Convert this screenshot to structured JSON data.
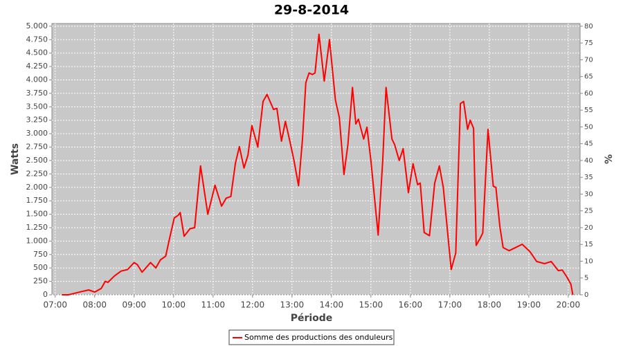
{
  "chart_data": {
    "type": "line",
    "title": "29-8-2014",
    "x_label": "Période",
    "y_label": "Watts",
    "y2_label": "%",
    "x": [
      "07:10",
      "07:20",
      "07:30",
      "07:40",
      "07:51",
      "08:00",
      "08:10",
      "08:16",
      "08:20",
      "08:30",
      "08:40",
      "08:50",
      "09:00",
      "09:05",
      "09:12",
      "09:25",
      "09:33",
      "09:40",
      "09:48",
      "09:53",
      "10:01",
      "10:07",
      "10:10",
      "10:16",
      "10:25",
      "10:32",
      "10:41",
      "10:52",
      "11:03",
      "11:13",
      "11:20",
      "11:27",
      "11:34",
      "11:40",
      "11:47",
      "11:53",
      "11:59",
      "12:08",
      "12:16",
      "12:22",
      "12:32",
      "12:37",
      "12:44",
      "12:50",
      "12:58",
      "13:03",
      "13:10",
      "13:16",
      "13:21",
      "13:26",
      "13:31",
      "13:35",
      "13:41",
      "13:49",
      "13:57",
      "14:06",
      "14:12",
      "14:19",
      "14:25",
      "14:32",
      "14:37",
      "14:41",
      "14:49",
      "14:54",
      "15:00",
      "15:11",
      "15:18",
      "15:23",
      "15:32",
      "15:36",
      "15:43",
      "15:49",
      "15:57",
      "16:04",
      "16:11",
      "16:15",
      "16:21",
      "16:29",
      "16:37",
      "16:44",
      "16:50",
      "17:02",
      "17:09",
      "17:16",
      "17:21",
      "17:27",
      "17:31",
      "17:36",
      "17:40",
      "17:46",
      "17:50",
      "17:58",
      "18:06",
      "18:10",
      "18:16",
      "18:21",
      "18:30",
      "18:40",
      "18:50",
      "19:02",
      "19:12",
      "19:24",
      "19:34",
      "19:45",
      "19:51",
      "19:57",
      "20:04",
      "20:07"
    ],
    "series": [
      {
        "name": "Somme des productions des onduleurs",
        "color": "#ff0000",
        "values": [
          0,
          0,
          30,
          60,
          90,
          50,
          120,
          250,
          230,
          350,
          440,
          470,
          600,
          560,
          420,
          600,
          500,
          650,
          720,
          1000,
          1430,
          1480,
          1530,
          1090,
          1230,
          1250,
          2400,
          1500,
          2040,
          1650,
          1800,
          1830,
          2450,
          2760,
          2360,
          2600,
          3150,
          2750,
          3600,
          3730,
          3450,
          3470,
          2860,
          3230,
          2790,
          2500,
          2030,
          2900,
          3950,
          4130,
          4100,
          4130,
          4850,
          3980,
          4750,
          3630,
          3300,
          2240,
          2800,
          3860,
          3180,
          3270,
          2900,
          3120,
          2500,
          1110,
          2500,
          3860,
          2900,
          2800,
          2500,
          2720,
          1900,
          2440,
          2050,
          2080,
          1160,
          1100,
          2080,
          2400,
          2000,
          470,
          780,
          3560,
          3600,
          3080,
          3250,
          3100,
          920,
          1050,
          1150,
          3080,
          2020,
          2000,
          1270,
          880,
          820,
          880,
          940,
          800,
          620,
          580,
          620,
          450,
          460,
          350,
          200,
          0
        ]
      }
    ],
    "xlim": [
      "06:55",
      "20:18"
    ],
    "xticks": [
      "07:00",
      "08:00",
      "09:00",
      "10:00",
      "11:00",
      "12:00",
      "13:00",
      "14:00",
      "15:00",
      "16:00",
      "17:00",
      "18:00",
      "19:00",
      "20:00"
    ],
    "ylim": [
      0,
      5050
    ],
    "yticks": [
      0,
      250,
      500,
      750,
      {
        "value": 1000,
        "label": "1.000"
      },
      {
        "value": 1250,
        "label": "1.250"
      },
      {
        "value": 1500,
        "label": "1.500"
      },
      {
        "value": 1750,
        "label": "1.750"
      },
      {
        "value": 2000,
        "label": "2.000"
      },
      {
        "value": 2250,
        "label": "2.250"
      },
      {
        "value": 2500,
        "label": "2.500"
      },
      {
        "value": 2750,
        "label": "2.750"
      },
      {
        "value": 3000,
        "label": "3.000"
      },
      {
        "value": 3250,
        "label": "3.250"
      },
      {
        "value": 3500,
        "label": "3.500"
      },
      {
        "value": 3750,
        "label": "3.750"
      },
      {
        "value": 4000,
        "label": "4.000"
      },
      {
        "value": 4250,
        "label": "4.250"
      },
      {
        "value": 4500,
        "label": "4.500"
      },
      {
        "value": 4750,
        "label": "4.750"
      },
      {
        "value": 5000,
        "label": "5.000"
      }
    ],
    "y2lim": [
      0,
      80.8
    ],
    "y2ticks": [
      0,
      5,
      10,
      15,
      20,
      25,
      30,
      35,
      40,
      45,
      50,
      55,
      60,
      65,
      70,
      75,
      80
    ],
    "grid": true,
    "legend": "bottom"
  }
}
